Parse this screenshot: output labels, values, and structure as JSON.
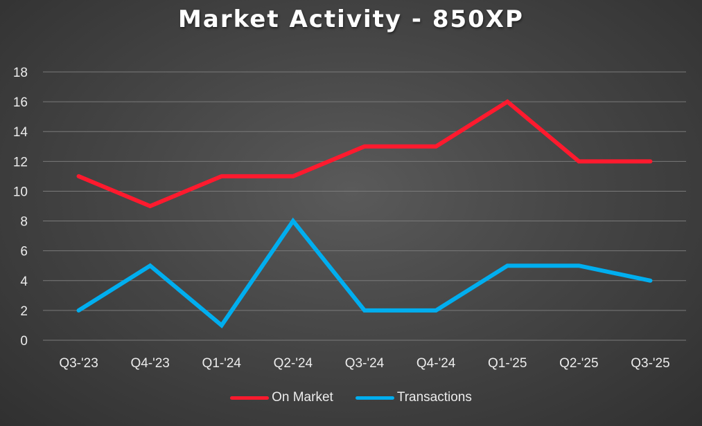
{
  "chart_data": {
    "type": "line",
    "title": "Market Activity - 850XP",
    "xlabel": "",
    "ylabel": "",
    "categories": [
      "Q3-'23",
      "Q4-'23",
      "Q1-'24",
      "Q2-'24",
      "Q3-'24",
      "Q4-'24",
      "Q1-'25",
      "Q2-'25",
      "Q3-'25"
    ],
    "series": [
      {
        "name": "On Market",
        "color": "#ff1a2e",
        "values": [
          11,
          9,
          11,
          11,
          13,
          13,
          16,
          12,
          12
        ]
      },
      {
        "name": "Transactions",
        "color": "#00aeef",
        "values": [
          2,
          5,
          1,
          8,
          2,
          2,
          5,
          5,
          4
        ]
      }
    ],
    "ylim": [
      0,
      18
    ],
    "yticks": [
      0,
      2,
      4,
      6,
      8,
      10,
      12,
      14,
      16,
      18
    ],
    "grid": true,
    "legend_position": "bottom"
  }
}
